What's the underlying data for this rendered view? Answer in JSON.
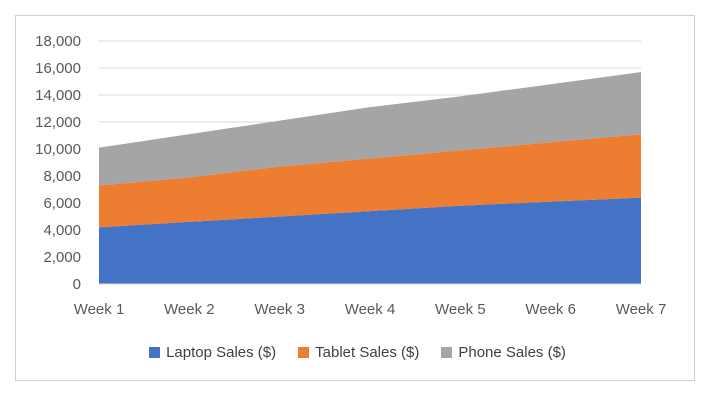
{
  "chart_data": {
    "type": "area",
    "stacked": true,
    "categories": [
      "Week 1",
      "Week 2",
      "Week 3",
      "Week 4",
      "Week 5",
      "Week 6",
      "Week 7"
    ],
    "series": [
      {
        "name": "Laptop Sales ($)",
        "color": "#4472C4",
        "values": [
          4200,
          4600,
          5000,
          5400,
          5800,
          6100,
          6400
        ]
      },
      {
        "name": "Tablet Sales ($)",
        "color": "#ED7D31",
        "values": [
          3100,
          3300,
          3700,
          3900,
          4100,
          4400,
          4700
        ]
      },
      {
        "name": "Phone Sales ($)",
        "color": "#A5A5A5",
        "values": [
          2800,
          3200,
          3400,
          3800,
          4000,
          4300,
          4600
        ]
      }
    ],
    "y_ticks": [
      "0",
      "2,000",
      "4,000",
      "6,000",
      "8,000",
      "10,000",
      "12,000",
      "14,000",
      "16,000",
      "18,000"
    ],
    "ylim": [
      0,
      18000
    ],
    "grid": true,
    "legend_position": "bottom"
  }
}
